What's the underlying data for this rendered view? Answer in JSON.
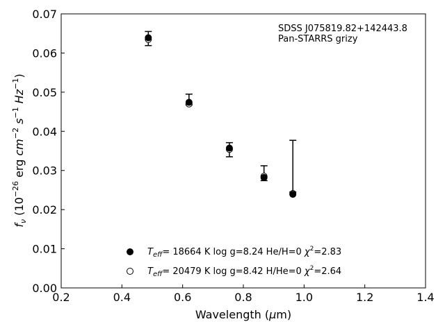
{
  "chart_data": {
    "type": "scatter",
    "title": "",
    "xlabel_text": "Wavelength (",
    "xlabel_symbol": "μ",
    "xlabel_unit": "m)",
    "ylabel_parts": {
      "f": "f",
      "nu": "ν",
      "open": " (10",
      "exp1": "−26",
      "erg": " erg ",
      "cm": "cm",
      "exp2": "−2",
      "s": " s",
      "exp3": "−1",
      "hz": " Hz",
      "exp4": "−1",
      "close": ")"
    },
    "xlim": [
      0.2,
      1.4
    ],
    "ylim": [
      0.0,
      0.07
    ],
    "xticks": [
      "0.2",
      "0.4",
      "0.6",
      "0.8",
      "1.0",
      "1.2",
      "1.4"
    ],
    "yticks": [
      "0.00",
      "0.01",
      "0.02",
      "0.03",
      "0.04",
      "0.05",
      "0.06",
      "0.07"
    ],
    "annotation": [
      "SDSS J075819.82+142443.8",
      "Pan-STARRS grizy"
    ],
    "observed": {
      "x": [
        0.487,
        0.621,
        0.754,
        0.868,
        0.963
      ],
      "y": [
        0.0637,
        0.0481,
        0.0353,
        0.0293,
        0.0311
      ],
      "yerr": [
        0.0018,
        0.0014,
        0.0018,
        0.0019,
        0.0066
      ]
    },
    "series": [
      {
        "marker": "filled",
        "x": [
          0.487,
          0.621,
          0.754,
          0.868,
          0.963
        ],
        "y": [
          0.0639,
          0.0474,
          0.0357,
          0.0282,
          0.0239
        ],
        "legend": {
          "T": "T",
          "eff": "eff",
          "rest": "= 18664 K  log g=8.24  He/H=0  ",
          "chi": "χ",
          "sq": "2",
          "val": "=2.83"
        }
      },
      {
        "marker": "open",
        "x": [
          0.487,
          0.621,
          0.754,
          0.868,
          0.963
        ],
        "y": [
          0.0635,
          0.047,
          0.0354,
          0.0285,
          0.0241
        ],
        "legend": {
          "T": "T",
          "eff": "eff",
          "rest": "= 20479 K  log g=8.42  H/He=0  ",
          "chi": "χ",
          "sq": "2",
          "val": "=2.64"
        }
      }
    ],
    "colors": {
      "marker": "#000000",
      "axes": "#000000"
    }
  }
}
